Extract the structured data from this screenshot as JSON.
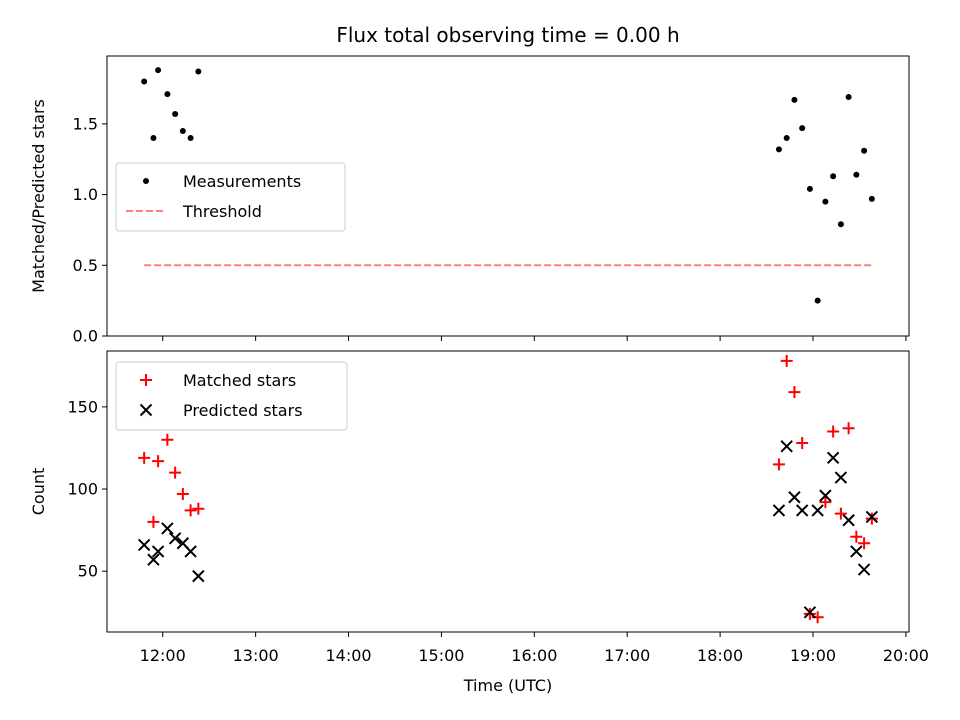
{
  "chart_data": {
    "title": "Flux total observing time = 0.00 h",
    "panels": [
      {
        "type": "scatter",
        "ylabel": "Matched/Predicted stars",
        "xlim": [
          "11:24",
          "20:02"
        ],
        "ylim": [
          0,
          1.98
        ],
        "yticks": [
          "0.0",
          "0.5",
          "1.0",
          "1.5"
        ],
        "legend_position": "center-left",
        "series": [
          {
            "name": "Measurements",
            "marker": "dot",
            "color": "#000000",
            "points": [
              {
                "x": "11:48",
                "y": 1.8
              },
              {
                "x": "11:54",
                "y": 1.4
              },
              {
                "x": "11:57",
                "y": 1.88
              },
              {
                "x": "12:03",
                "y": 1.71
              },
              {
                "x": "12:08",
                "y": 1.57
              },
              {
                "x": "12:13",
                "y": 1.45
              },
              {
                "x": "12:18",
                "y": 1.4
              },
              {
                "x": "12:23",
                "y": 1.87
              },
              {
                "x": "18:38",
                "y": 1.32
              },
              {
                "x": "18:43",
                "y": 1.4
              },
              {
                "x": "18:48",
                "y": 1.67
              },
              {
                "x": "18:53",
                "y": 1.47
              },
              {
                "x": "18:58",
                "y": 1.04
              },
              {
                "x": "19:03",
                "y": 0.25
              },
              {
                "x": "19:08",
                "y": 0.95
              },
              {
                "x": "19:13",
                "y": 1.13
              },
              {
                "x": "19:18",
                "y": 0.79
              },
              {
                "x": "19:23",
                "y": 1.69
              },
              {
                "x": "19:28",
                "y": 1.14
              },
              {
                "x": "19:33",
                "y": 1.31
              },
              {
                "x": "19:38",
                "y": 0.97
              }
            ]
          },
          {
            "name": "Threshold",
            "type": "line",
            "style": "dashed",
            "color": "#ff7f7f",
            "points": [
              {
                "x": "11:48",
                "y": 0.5
              },
              {
                "x": "19:38",
                "y": 0.5
              }
            ]
          }
        ]
      },
      {
        "type": "scatter",
        "xlabel": "Time (UTC)",
        "ylabel": "Count",
        "xlim": [
          "11:24",
          "20:02"
        ],
        "ylim": [
          13,
          184
        ],
        "yticks": [
          "50",
          "100",
          "150"
        ],
        "xticks": [
          "12:00",
          "13:00",
          "14:00",
          "15:00",
          "16:00",
          "17:00",
          "18:00",
          "19:00",
          "20:00"
        ],
        "legend_position": "upper-left",
        "series": [
          {
            "name": "Matched stars",
            "marker": "plus",
            "color": "#ff0000",
            "points": [
              {
                "x": "11:48",
                "y": 119
              },
              {
                "x": "11:54",
                "y": 80
              },
              {
                "x": "11:57",
                "y": 117
              },
              {
                "x": "12:03",
                "y": 130
              },
              {
                "x": "12:08",
                "y": 110
              },
              {
                "x": "12:13",
                "y": 97
              },
              {
                "x": "12:18",
                "y": 87
              },
              {
                "x": "12:23",
                "y": 88
              },
              {
                "x": "18:38",
                "y": 115
              },
              {
                "x": "18:43",
                "y": 178
              },
              {
                "x": "18:48",
                "y": 159
              },
              {
                "x": "18:53",
                "y": 128
              },
              {
                "x": "18:58",
                "y": 24
              },
              {
                "x": "19:03",
                "y": 22
              },
              {
                "x": "19:08",
                "y": 92
              },
              {
                "x": "19:13",
                "y": 135
              },
              {
                "x": "19:18",
                "y": 85
              },
              {
                "x": "19:23",
                "y": 137
              },
              {
                "x": "19:28",
                "y": 71
              },
              {
                "x": "19:33",
                "y": 67
              },
              {
                "x": "19:38",
                "y": 82
              }
            ]
          },
          {
            "name": "Predicted stars",
            "marker": "x",
            "color": "#000000",
            "points": [
              {
                "x": "11:48",
                "y": 66
              },
              {
                "x": "11:54",
                "y": 57
              },
              {
                "x": "11:57",
                "y": 62
              },
              {
                "x": "12:03",
                "y": 76
              },
              {
                "x": "12:08",
                "y": 70
              },
              {
                "x": "12:13",
                "y": 67
              },
              {
                "x": "12:18",
                "y": 62
              },
              {
                "x": "12:23",
                "y": 47
              },
              {
                "x": "18:38",
                "y": 87
              },
              {
                "x": "18:43",
                "y": 126
              },
              {
                "x": "18:48",
                "y": 95
              },
              {
                "x": "18:53",
                "y": 87
              },
              {
                "x": "18:58",
                "y": 25
              },
              {
                "x": "19:03",
                "y": 87
              },
              {
                "x": "19:08",
                "y": 96
              },
              {
                "x": "19:13",
                "y": 119
              },
              {
                "x": "19:18",
                "y": 107
              },
              {
                "x": "19:23",
                "y": 81
              },
              {
                "x": "19:28",
                "y": 62
              },
              {
                "x": "19:33",
                "y": 51
              },
              {
                "x": "19:38",
                "y": 83
              }
            ]
          }
        ]
      }
    ]
  }
}
